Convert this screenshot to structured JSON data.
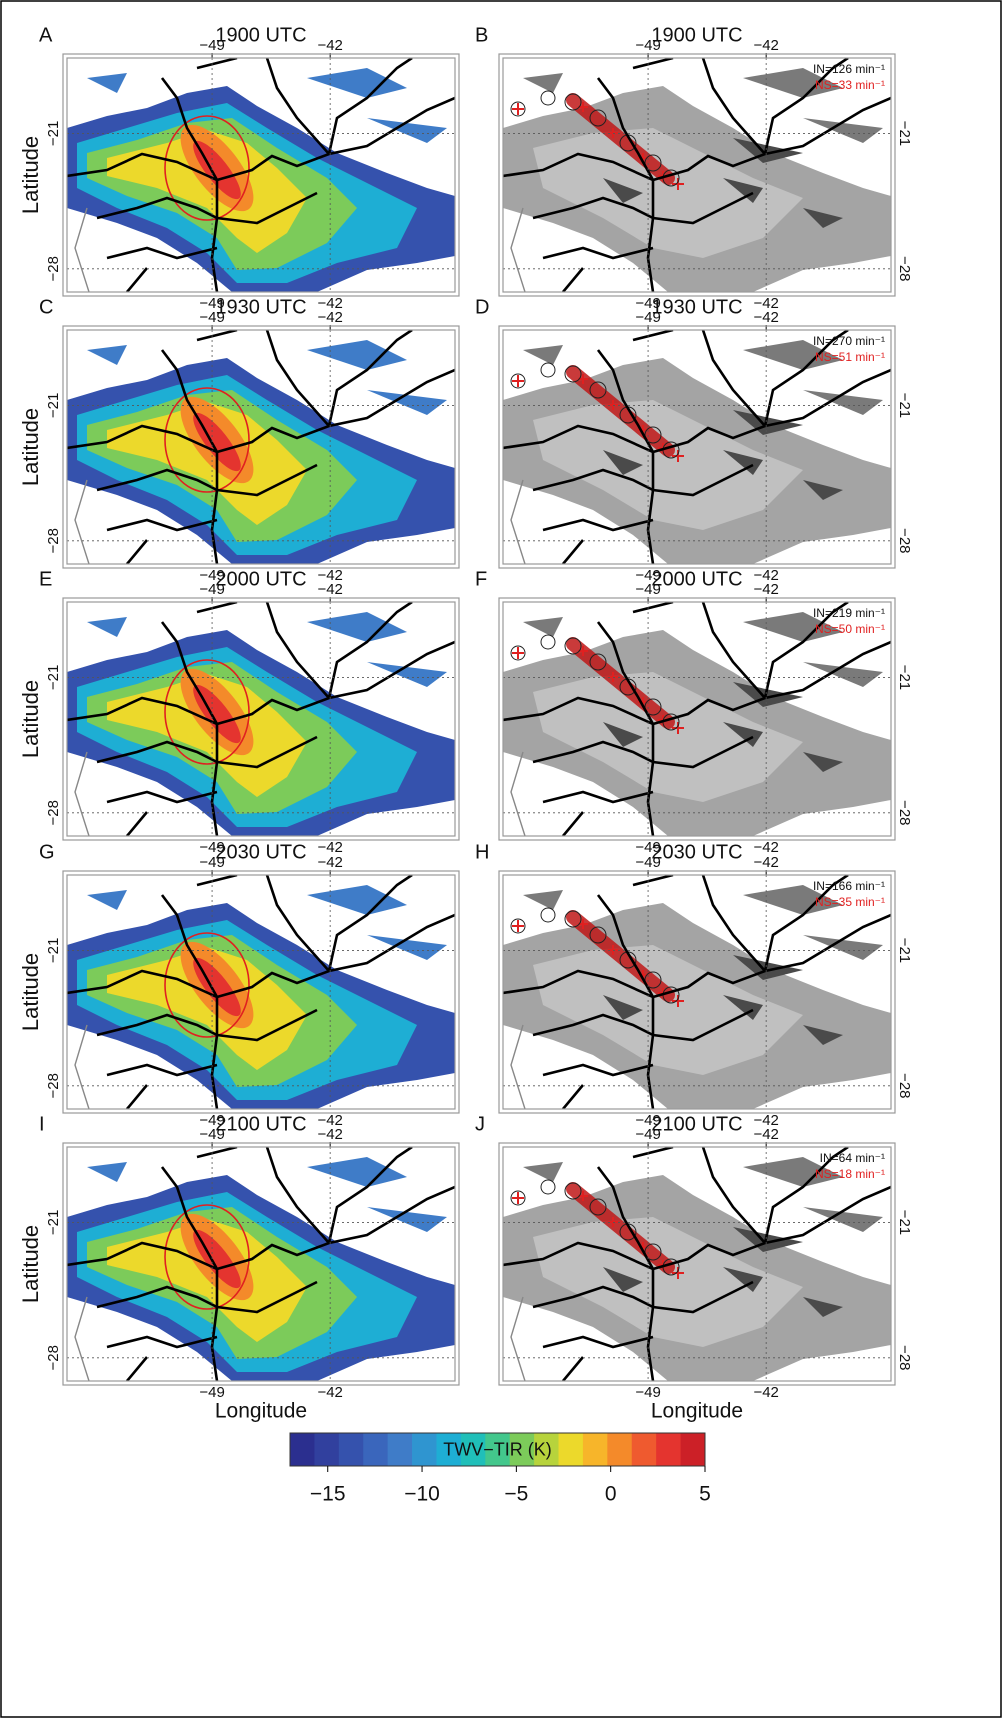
{
  "figure": {
    "panels": [
      {
        "letter": "A",
        "title": "1900 UTC",
        "kind": "twv"
      },
      {
        "letter": "B",
        "title": "1900 UTC",
        "kind": "flash",
        "annotations": [
          {
            "text": "IN=126 min⁻¹",
            "color": "#111111"
          },
          {
            "text": "NS=33 min⁻¹",
            "color": "#e02020"
          }
        ]
      },
      {
        "letter": "C",
        "title": "1930 UTC",
        "kind": "twv"
      },
      {
        "letter": "D",
        "title": "1930 UTC",
        "kind": "flash",
        "annotations": [
          {
            "text": "IN=270 min⁻¹",
            "color": "#111111"
          },
          {
            "text": "NS=51 min⁻¹",
            "color": "#e02020"
          }
        ]
      },
      {
        "letter": "E",
        "title": "2000 UTC",
        "kind": "twv"
      },
      {
        "letter": "F",
        "title": "2000 UTC",
        "kind": "flash",
        "annotations": [
          {
            "text": "IN=219 min⁻¹",
            "color": "#111111"
          },
          {
            "text": "NS=50 min⁻¹",
            "color": "#e02020"
          }
        ]
      },
      {
        "letter": "G",
        "title": "2030 UTC",
        "kind": "twv"
      },
      {
        "letter": "H",
        "title": "2030 UTC",
        "kind": "flash",
        "annotations": [
          {
            "text": "IN=166 min⁻¹",
            "color": "#111111"
          },
          {
            "text": "NS=35 min⁻¹",
            "color": "#e02020"
          }
        ]
      },
      {
        "letter": "I",
        "title": "2100 UTC",
        "kind": "twv"
      },
      {
        "letter": "J",
        "title": "2100 UTC",
        "kind": "flash",
        "annotations": [
          {
            "text": "IN=64 min⁻¹",
            "color": "#111111"
          },
          {
            "text": "NS=18 min⁻¹",
            "color": "#e02020"
          }
        ]
      }
    ],
    "x_label": "Longitude",
    "y_label": "Latitude",
    "lon_range": [
      -57.6,
      -34.6
    ],
    "lat_range": [
      -17.1,
      -29.2
    ],
    "lon_ticks": [
      {
        "value": -49,
        "label": "−49"
      },
      {
        "value": -42,
        "label": "−42"
      }
    ],
    "lat_ticks": [
      {
        "value": -21,
        "label": "−21"
      },
      {
        "value": -28,
        "label": "−28"
      }
    ],
    "colorbar": {
      "label": "TWV−TIR (K)",
      "range": [
        -17,
        5
      ],
      "ticks": [
        {
          "value": -15,
          "label": "−15"
        },
        {
          "value": -10,
          "label": "−10"
        },
        {
          "value": -5,
          "label": "−5"
        },
        {
          "value": 0,
          "label": "0"
        },
        {
          "value": 5,
          "label": "5"
        }
      ],
      "colors": [
        "#2b2f8f",
        "#31409e",
        "#3552ad",
        "#3a66bc",
        "#3f7cc8",
        "#2f95d0",
        "#1eaed4",
        "#20bfb9",
        "#43c78c",
        "#7ccb5a",
        "#b7d33c",
        "#ecd92b",
        "#f7b52a",
        "#f48a2a",
        "#ef5a2f",
        "#e4342f",
        "#cc2027"
      ]
    }
  }
}
